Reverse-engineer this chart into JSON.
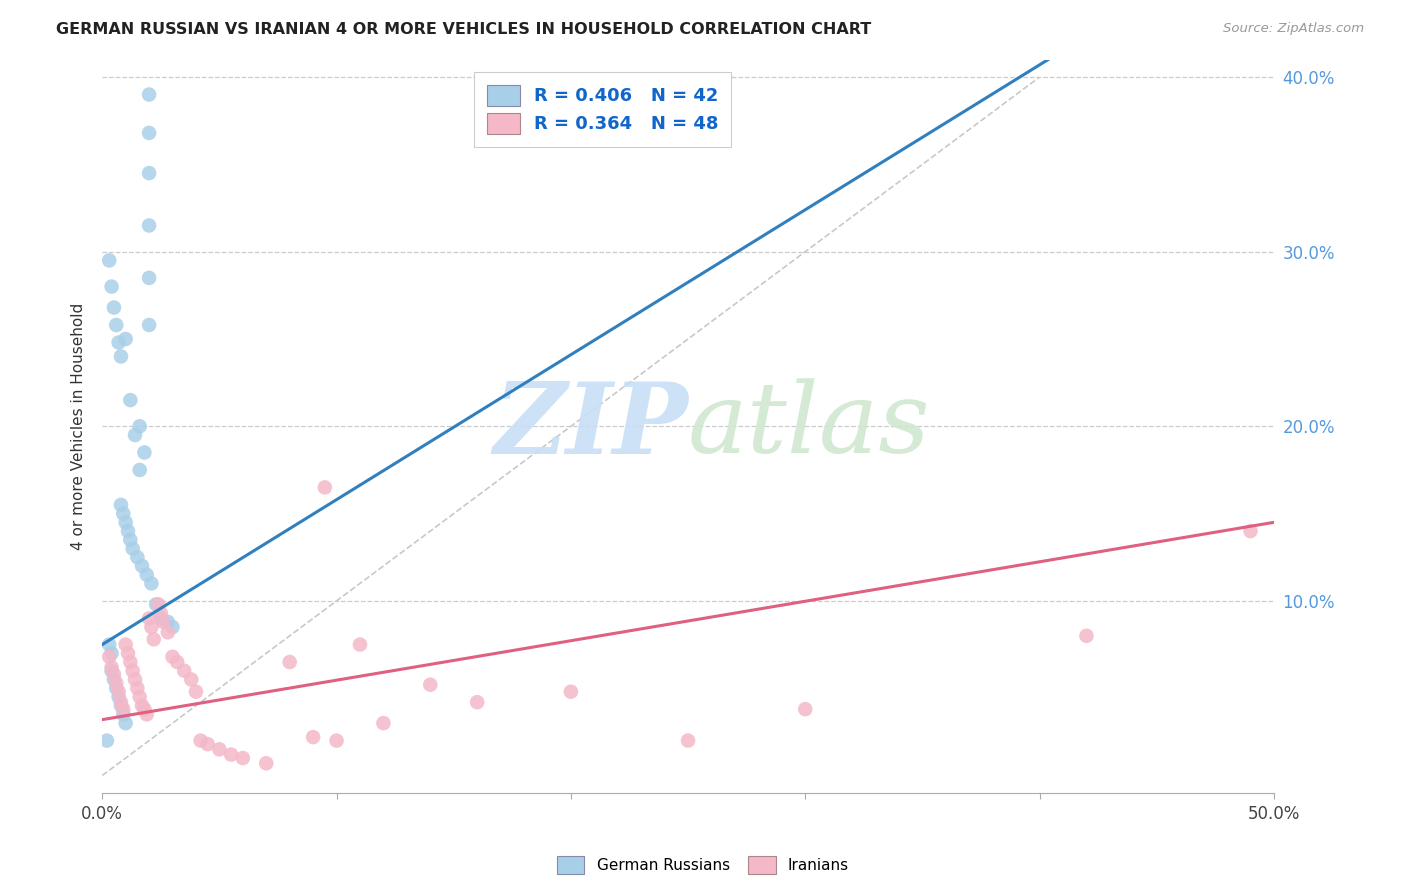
{
  "title": "GERMAN RUSSIAN VS IRANIAN 4 OR MORE VEHICLES IN HOUSEHOLD CORRELATION CHART",
  "source": "Source: ZipAtlas.com",
  "ylabel": "4 or more Vehicles in Household",
  "xlim": [
    0.0,
    0.5
  ],
  "ylim": [
    -0.01,
    0.41
  ],
  "ytick_vals": [
    0.1,
    0.2,
    0.3,
    0.4
  ],
  "ytick_labels": [
    "10.0%",
    "20.0%",
    "30.0%",
    "40.0%"
  ],
  "xtick_vals": [
    0.0,
    0.1,
    0.2,
    0.3,
    0.4,
    0.5
  ],
  "xtick_labels": [
    "0.0%",
    "",
    "",
    "",
    "",
    "50.0%"
  ],
  "blue_color": "#a8cfe8",
  "pink_color": "#f4b8c8",
  "blue_line_color": "#3080c0",
  "pink_line_color": "#e06080",
  "diag_color": "#bbbbbb",
  "legend_R_blue": "R = 0.406",
  "legend_N_blue": "N = 42",
  "legend_R_pink": "R = 0.364",
  "legend_N_pink": "N = 48",
  "watermark_zip": "ZIP",
  "watermark_atlas": "atlas",
  "legend_label_blue": "German Russians",
  "legend_label_pink": "Iranians",
  "blue_scatter_x": [
    0.02,
    0.02,
    0.02,
    0.02,
    0.02,
    0.02,
    0.01,
    0.012,
    0.014,
    0.016,
    0.016,
    0.018,
    0.003,
    0.004,
    0.005,
    0.006,
    0.007,
    0.008,
    0.008,
    0.009,
    0.01,
    0.011,
    0.012,
    0.013,
    0.015,
    0.017,
    0.019,
    0.021,
    0.023,
    0.025,
    0.028,
    0.03,
    0.003,
    0.004,
    0.004,
    0.005,
    0.006,
    0.007,
    0.008,
    0.009,
    0.01,
    0.002
  ],
  "blue_scatter_y": [
    0.39,
    0.368,
    0.345,
    0.315,
    0.285,
    0.258,
    0.25,
    0.215,
    0.195,
    0.175,
    0.2,
    0.185,
    0.295,
    0.28,
    0.268,
    0.258,
    0.248,
    0.24,
    0.155,
    0.15,
    0.145,
    0.14,
    0.135,
    0.13,
    0.125,
    0.12,
    0.115,
    0.11,
    0.098,
    0.09,
    0.088,
    0.085,
    0.075,
    0.07,
    0.06,
    0.055,
    0.05,
    0.045,
    0.04,
    0.035,
    0.03,
    0.02
  ],
  "pink_scatter_x": [
    0.003,
    0.004,
    0.005,
    0.006,
    0.007,
    0.008,
    0.009,
    0.01,
    0.011,
    0.012,
    0.013,
    0.014,
    0.015,
    0.016,
    0.017,
    0.018,
    0.019,
    0.02,
    0.021,
    0.022,
    0.024,
    0.025,
    0.026,
    0.028,
    0.03,
    0.032,
    0.035,
    0.038,
    0.04,
    0.042,
    0.045,
    0.05,
    0.055,
    0.06,
    0.07,
    0.08,
    0.09,
    0.095,
    0.1,
    0.11,
    0.12,
    0.14,
    0.16,
    0.2,
    0.25,
    0.3,
    0.42,
    0.49
  ],
  "pink_scatter_y": [
    0.068,
    0.062,
    0.058,
    0.053,
    0.048,
    0.042,
    0.038,
    0.075,
    0.07,
    0.065,
    0.06,
    0.055,
    0.05,
    0.045,
    0.04,
    0.038,
    0.035,
    0.09,
    0.085,
    0.078,
    0.098,
    0.093,
    0.088,
    0.082,
    0.068,
    0.065,
    0.06,
    0.055,
    0.048,
    0.02,
    0.018,
    0.015,
    0.012,
    0.01,
    0.007,
    0.065,
    0.022,
    0.165,
    0.02,
    0.075,
    0.03,
    0.052,
    0.042,
    0.048,
    0.02,
    0.038,
    0.08,
    0.14
  ],
  "blue_line_x": [
    0.0,
    0.5
  ],
  "blue_line_y": [
    0.075,
    0.49
  ],
  "pink_line_x": [
    0.0,
    0.5
  ],
  "pink_line_y": [
    0.032,
    0.145
  ],
  "diag_line_x": [
    0.0,
    0.4
  ],
  "diag_line_y": [
    0.0,
    0.4
  ]
}
